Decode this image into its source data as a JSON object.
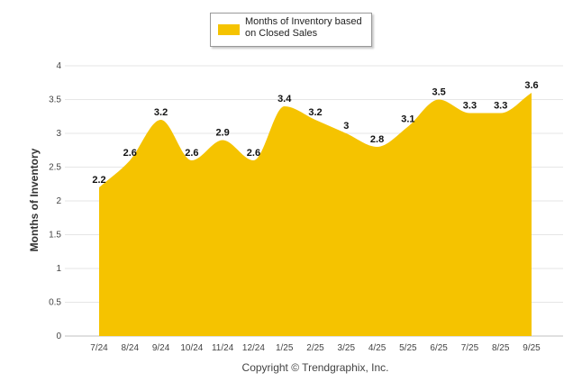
{
  "chart_data": {
    "type": "area",
    "title": "",
    "legend": "Months of Inventory based on Closed Sales",
    "legend_position": "top-center",
    "categories": [
      "7/24",
      "8/24",
      "9/24",
      "10/24",
      "11/24",
      "12/24",
      "1/25",
      "2/25",
      "3/25",
      "4/25",
      "5/25",
      "6/25",
      "7/25",
      "8/25",
      "9/25"
    ],
    "series": [
      {
        "name": "Months of Inventory based on Closed Sales",
        "values": [
          2.2,
          2.6,
          3.2,
          2.6,
          2.9,
          2.6,
          3.4,
          3.2,
          3.0,
          2.8,
          3.1,
          3.5,
          3.3,
          3.3,
          3.6
        ]
      }
    ],
    "data_labels": [
      "2.2",
      "2.6",
      "3.2",
      "2.6",
      "2.9",
      "2.6",
      "3.4",
      "3.2",
      "3",
      "2.8",
      "3.1",
      "3.5",
      "3.3",
      "3.3",
      "3.6"
    ],
    "y_ticks": [
      "0",
      "0.5",
      "1",
      "1.5",
      "2",
      "2.5",
      "3",
      "3.5",
      "4"
    ],
    "ylim": [
      0,
      4
    ],
    "xlabel": "",
    "ylabel": "Months of Inventory",
    "grid": true,
    "color": "#f5c300"
  },
  "footer": {
    "copyright": "Copyright © Trendgraphix, Inc."
  }
}
